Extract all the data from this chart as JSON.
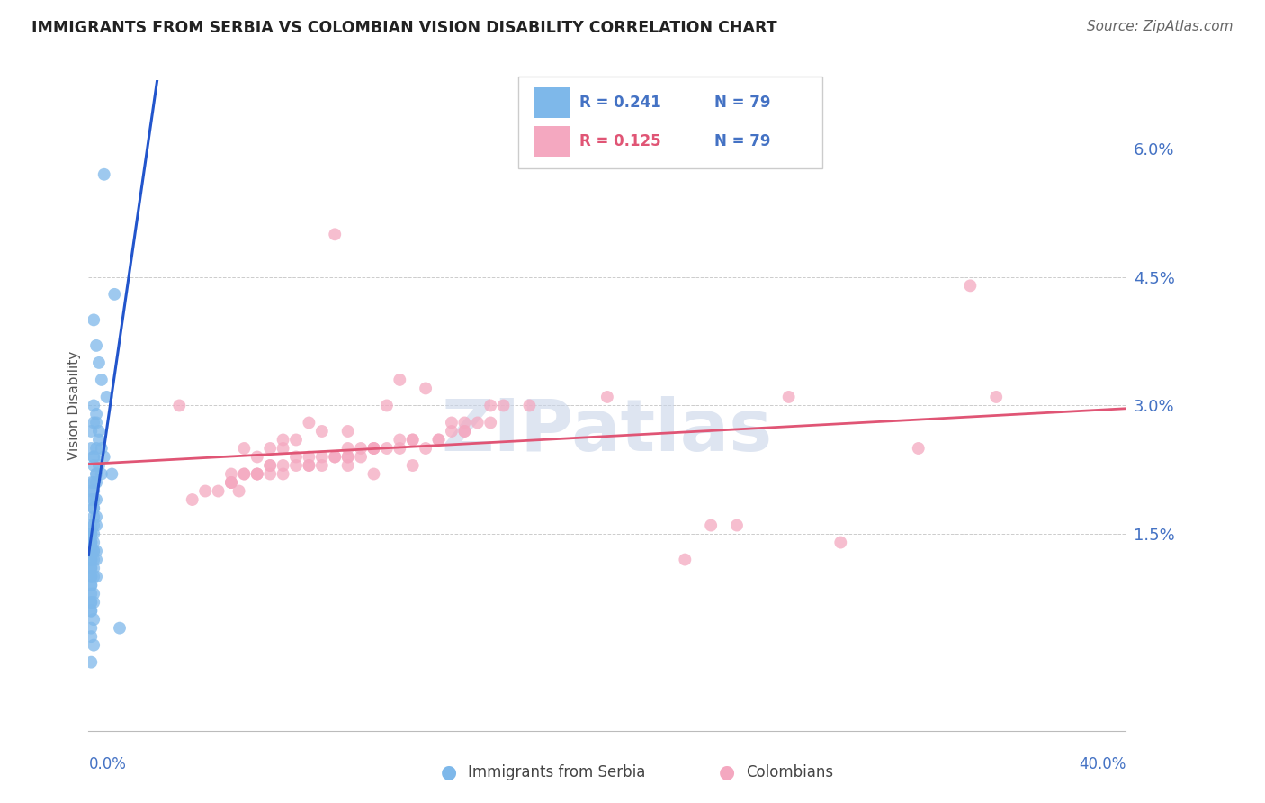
{
  "title": "IMMIGRANTS FROM SERBIA VS COLOMBIAN VISION DISABILITY CORRELATION CHART",
  "source": "Source: ZipAtlas.com",
  "ylabel": "Vision Disability",
  "y_ticks": [
    0.0,
    0.015,
    0.03,
    0.045,
    0.06
  ],
  "y_tick_labels": [
    "",
    "1.5%",
    "3.0%",
    "4.5%",
    "6.0%"
  ],
  "x_range": [
    0.0,
    0.4
  ],
  "y_range": [
    -0.008,
    0.068
  ],
  "color_serbia": "#7EB8EA",
  "color_colombia": "#F4A8C0",
  "color_trendline_serbia_solid": "#2255CC",
  "color_trendline_serbia_dash": "#99BBDD",
  "color_trendline_colombia": "#E05575",
  "watermark_color": "#C8D4E8",
  "serbia_x": [
    0.006,
    0.01,
    0.002,
    0.003,
    0.004,
    0.005,
    0.007,
    0.003,
    0.002,
    0.001,
    0.004,
    0.005,
    0.003,
    0.006,
    0.002,
    0.009,
    0.003,
    0.003,
    0.002,
    0.001,
    0.002,
    0.003,
    0.004,
    0.001,
    0.002,
    0.002,
    0.004,
    0.005,
    0.003,
    0.002,
    0.001,
    0.002,
    0.003,
    0.001,
    0.002,
    0.002,
    0.003,
    0.002,
    0.001,
    0.002,
    0.003,
    0.001,
    0.001,
    0.002,
    0.001,
    0.001,
    0.001,
    0.002,
    0.001,
    0.002,
    0.002,
    0.003,
    0.001,
    0.001,
    0.002,
    0.003,
    0.001,
    0.001,
    0.002,
    0.001,
    0.001,
    0.002,
    0.001,
    0.003,
    0.001,
    0.001,
    0.001,
    0.002,
    0.001,
    0.001,
    0.002,
    0.001,
    0.001,
    0.002,
    0.001,
    0.012,
    0.001,
    0.002,
    0.001
  ],
  "serbia_y": [
    0.057,
    0.043,
    0.04,
    0.037,
    0.035,
    0.033,
    0.031,
    0.029,
    0.028,
    0.027,
    0.026,
    0.025,
    0.025,
    0.024,
    0.023,
    0.022,
    0.022,
    0.022,
    0.021,
    0.021,
    0.03,
    0.028,
    0.027,
    0.025,
    0.024,
    0.024,
    0.023,
    0.022,
    0.021,
    0.02,
    0.02,
    0.019,
    0.019,
    0.019,
    0.018,
    0.018,
    0.017,
    0.017,
    0.016,
    0.016,
    0.016,
    0.015,
    0.015,
    0.015,
    0.015,
    0.014,
    0.014,
    0.014,
    0.014,
    0.013,
    0.013,
    0.013,
    0.013,
    0.012,
    0.012,
    0.012,
    0.012,
    0.011,
    0.011,
    0.011,
    0.01,
    0.01,
    0.01,
    0.01,
    0.009,
    0.009,
    0.008,
    0.008,
    0.007,
    0.007,
    0.007,
    0.006,
    0.006,
    0.005,
    0.004,
    0.004,
    0.003,
    0.002,
    0.0
  ],
  "colombia_x": [
    0.035,
    0.06,
    0.085,
    0.095,
    0.11,
    0.075,
    0.12,
    0.065,
    0.14,
    0.09,
    0.13,
    0.05,
    0.115,
    0.155,
    0.07,
    0.1,
    0.08,
    0.145,
    0.04,
    0.16,
    0.055,
    0.105,
    0.075,
    0.125,
    0.065,
    0.085,
    0.135,
    0.11,
    0.095,
    0.15,
    0.045,
    0.13,
    0.145,
    0.06,
    0.08,
    0.1,
    0.07,
    0.12,
    0.055,
    0.09,
    0.155,
    0.11,
    0.17,
    0.075,
    0.125,
    0.065,
    0.1,
    0.085,
    0.14,
    0.055,
    0.115,
    0.095,
    0.07,
    0.135,
    0.06,
    0.11,
    0.08,
    0.1,
    0.055,
    0.125,
    0.07,
    0.09,
    0.12,
    0.065,
    0.145,
    0.085,
    0.105,
    0.058,
    0.1,
    0.075,
    0.25,
    0.29,
    0.32,
    0.27,
    0.23,
    0.2,
    0.24,
    0.35,
    0.34
  ],
  "colombia_y": [
    0.03,
    0.025,
    0.028,
    0.05,
    0.022,
    0.026,
    0.033,
    0.024,
    0.028,
    0.027,
    0.032,
    0.02,
    0.03,
    0.03,
    0.025,
    0.027,
    0.026,
    0.028,
    0.019,
    0.03,
    0.022,
    0.024,
    0.025,
    0.023,
    0.022,
    0.024,
    0.026,
    0.025,
    0.024,
    0.028,
    0.02,
    0.025,
    0.027,
    0.022,
    0.024,
    0.025,
    0.023,
    0.026,
    0.021,
    0.024,
    0.028,
    0.025,
    0.03,
    0.023,
    0.026,
    0.022,
    0.024,
    0.023,
    0.027,
    0.021,
    0.025,
    0.024,
    0.023,
    0.026,
    0.022,
    0.025,
    0.023,
    0.024,
    0.021,
    0.026,
    0.022,
    0.023,
    0.025,
    0.022,
    0.027,
    0.023,
    0.025,
    0.02,
    0.023,
    0.022,
    0.016,
    0.014,
    0.025,
    0.031,
    0.012,
    0.031,
    0.016,
    0.031,
    0.044
  ],
  "trendline_solid_x_end": 0.03,
  "background_color": "#FFFFFF"
}
